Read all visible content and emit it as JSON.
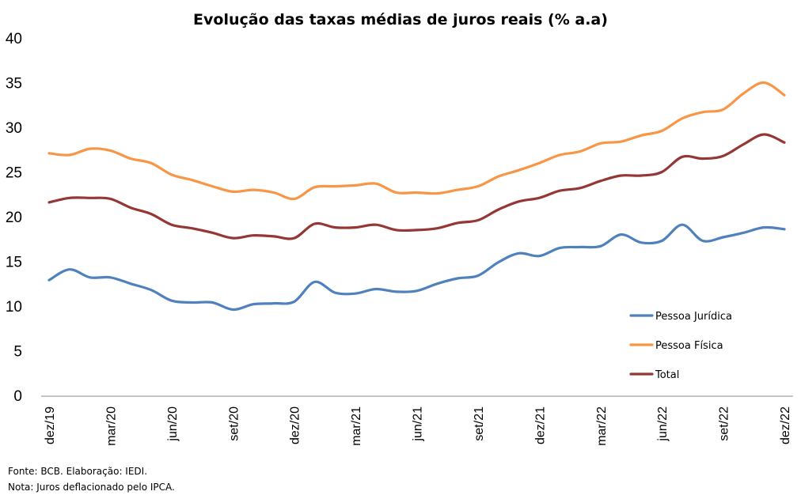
{
  "chart_data": {
    "type": "line",
    "title": "Evolução das taxas médias de juros reais (% a.a)",
    "xlabel": "",
    "ylabel": "",
    "ylim": [
      0,
      40
    ],
    "yticks": [
      0,
      5,
      10,
      15,
      20,
      25,
      30,
      35,
      40
    ],
    "grid": false,
    "legend_position": "right",
    "x": [
      "dez/19",
      "jan/20",
      "fev/20",
      "mar/20",
      "abr/20",
      "mai/20",
      "jun/20",
      "jul/20",
      "ago/20",
      "set/20",
      "out/20",
      "nov/20",
      "dez/20",
      "jan/21",
      "fev/21",
      "mar/21",
      "abr/21",
      "mai/21",
      "jun/21",
      "jul/21",
      "ago/21",
      "set/21",
      "out/21",
      "nov/21",
      "dez/21",
      "jan/22",
      "fev/22",
      "mar/22",
      "abr/22",
      "mai/22",
      "jun/22",
      "jul/22",
      "ago/22",
      "set/22",
      "out/22",
      "nov/22",
      "dez/22"
    ],
    "xtick_labels": [
      "dez/19",
      "mar/20",
      "jun/20",
      "set/20",
      "dez/20",
      "mar/21",
      "jun/21",
      "set/21",
      "dez/21",
      "mar/22",
      "jun/22",
      "set/22",
      "dez/22"
    ],
    "series": [
      {
        "name": "Pessoa Jurídica",
        "color": "#4f81bd",
        "values": [
          12.9,
          14.1,
          13.2,
          13.2,
          12.5,
          11.8,
          10.6,
          10.4,
          10.4,
          9.6,
          10.2,
          10.3,
          10.5,
          12.7,
          11.5,
          11.4,
          11.9,
          11.6,
          11.7,
          12.5,
          13.1,
          13.4,
          14.9,
          15.9,
          15.6,
          16.5,
          16.6,
          16.7,
          18.0,
          17.1,
          17.3,
          19.1,
          17.3,
          17.7,
          18.2,
          18.8,
          18.6
        ]
      },
      {
        "name": "Pessoa Física",
        "color": "#f79646",
        "values": [
          27.1,
          26.9,
          27.6,
          27.4,
          26.5,
          26.0,
          24.7,
          24.1,
          23.4,
          22.8,
          23.0,
          22.7,
          22.0,
          23.3,
          23.4,
          23.5,
          23.7,
          22.7,
          22.7,
          22.6,
          23.0,
          23.4,
          24.5,
          25.2,
          26.0,
          26.9,
          27.3,
          28.2,
          28.4,
          29.1,
          29.6,
          31.0,
          31.7,
          32.0,
          33.8,
          35.0,
          33.6
        ]
      },
      {
        "name": "Total",
        "color": "#953735",
        "values": [
          21.6,
          22.1,
          22.1,
          22.0,
          21.0,
          20.3,
          19.1,
          18.7,
          18.2,
          17.6,
          17.9,
          17.8,
          17.6,
          19.2,
          18.8,
          18.8,
          19.1,
          18.5,
          18.5,
          18.7,
          19.3,
          19.6,
          20.8,
          21.7,
          22.1,
          22.9,
          23.2,
          24.0,
          24.6,
          24.6,
          25.0,
          26.7,
          26.5,
          26.8,
          28.1,
          29.2,
          28.3
        ]
      }
    ]
  },
  "footer": {
    "source": "Fonte: BCB. Elaboração: IEDI.",
    "note": "Nota: Juros deflacionado pelo IPCA."
  }
}
